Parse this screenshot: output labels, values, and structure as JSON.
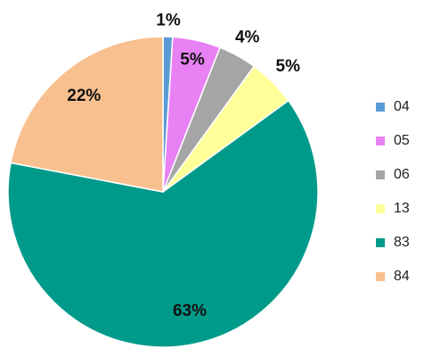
{
  "chart_data": {
    "type": "pie",
    "categories": [
      "04",
      "05",
      "06",
      "13",
      "83",
      "84"
    ],
    "values": [
      1,
      5,
      4,
      5,
      63,
      22
    ],
    "value_labels": [
      "1%",
      "5%",
      "4%",
      "5%",
      "63%",
      "22%"
    ],
    "colors": [
      "#5b9bd5",
      "#e882f4",
      "#a5a5a5",
      "#ffff99",
      "#009a8a",
      "#f8c08f"
    ]
  }
}
